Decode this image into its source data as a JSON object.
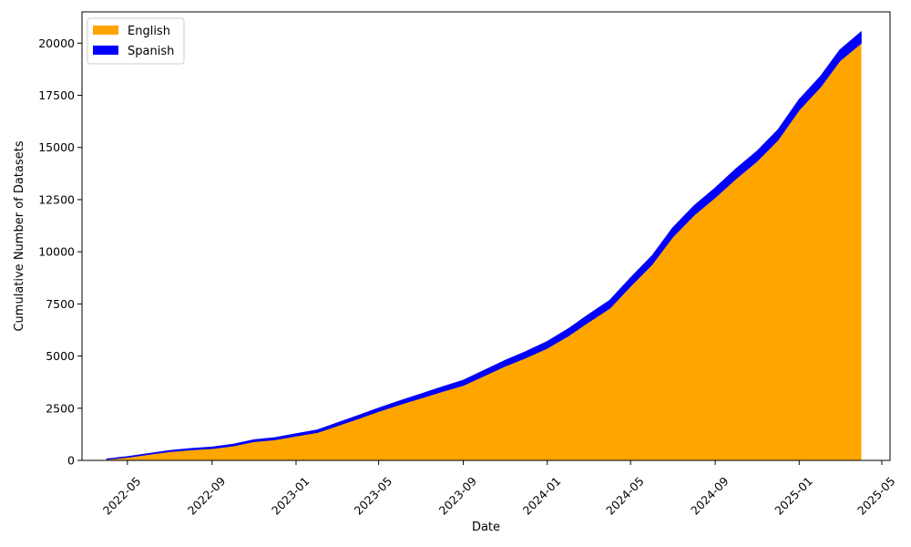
{
  "chart_data": {
    "type": "area",
    "stacked": true,
    "xlabel": "Date",
    "ylabel": "Cumulative Number of Datasets",
    "xlim": [
      "2022-02-24",
      "2025-05-13"
    ],
    "ylim": [
      0,
      21500
    ],
    "legend": "top-left",
    "grid": false,
    "x_ticks": [
      "2022-05",
      "2022-09",
      "2023-01",
      "2023-05",
      "2023-09",
      "2024-01",
      "2024-05",
      "2024-09",
      "2025-01",
      "2025-05"
    ],
    "y_ticks": [
      0,
      2500,
      5000,
      7500,
      10000,
      12500,
      15000,
      17500,
      20000
    ],
    "x": [
      "2022-04-01",
      "2022-05-01",
      "2022-06-01",
      "2022-07-01",
      "2022-08-01",
      "2022-09-01",
      "2022-10-01",
      "2022-11-01",
      "2022-12-01",
      "2023-01-01",
      "2023-02-01",
      "2023-03-01",
      "2023-04-01",
      "2023-05-01",
      "2023-06-01",
      "2023-07-01",
      "2023-08-01",
      "2023-09-01",
      "2023-10-01",
      "2023-11-01",
      "2023-12-01",
      "2024-01-01",
      "2024-02-01",
      "2024-03-01",
      "2024-04-01",
      "2024-05-01",
      "2024-06-01",
      "2024-07-01",
      "2024-08-01",
      "2024-09-01",
      "2024-10-01",
      "2024-11-01",
      "2024-12-01",
      "2025-01-01",
      "2025-02-01",
      "2025-03-01",
      "2025-04-01"
    ],
    "series": [
      {
        "name": "English",
        "color": "#ffa500",
        "values": [
          50,
          150,
          290,
          420,
          510,
          570,
          690,
          900,
          990,
          1170,
          1340,
          1650,
          2000,
          2350,
          2680,
          2980,
          3300,
          3600,
          4050,
          4520,
          4920,
          5380,
          5980,
          6630,
          7300,
          8350,
          9380,
          10700,
          11750,
          12600,
          13500,
          14350,
          15350,
          16800,
          17900,
          19150,
          20000
        ]
      },
      {
        "name": "Spanish",
        "color": "#0000ff",
        "values": [
          20,
          30,
          40,
          50,
          60,
          70,
          80,
          90,
          100,
          110,
          120,
          140,
          150,
          160,
          180,
          200,
          220,
          240,
          260,
          280,
          300,
          320,
          340,
          360,
          380,
          400,
          420,
          440,
          450,
          460,
          470,
          480,
          490,
          500,
          510,
          520,
          540
        ]
      }
    ]
  }
}
